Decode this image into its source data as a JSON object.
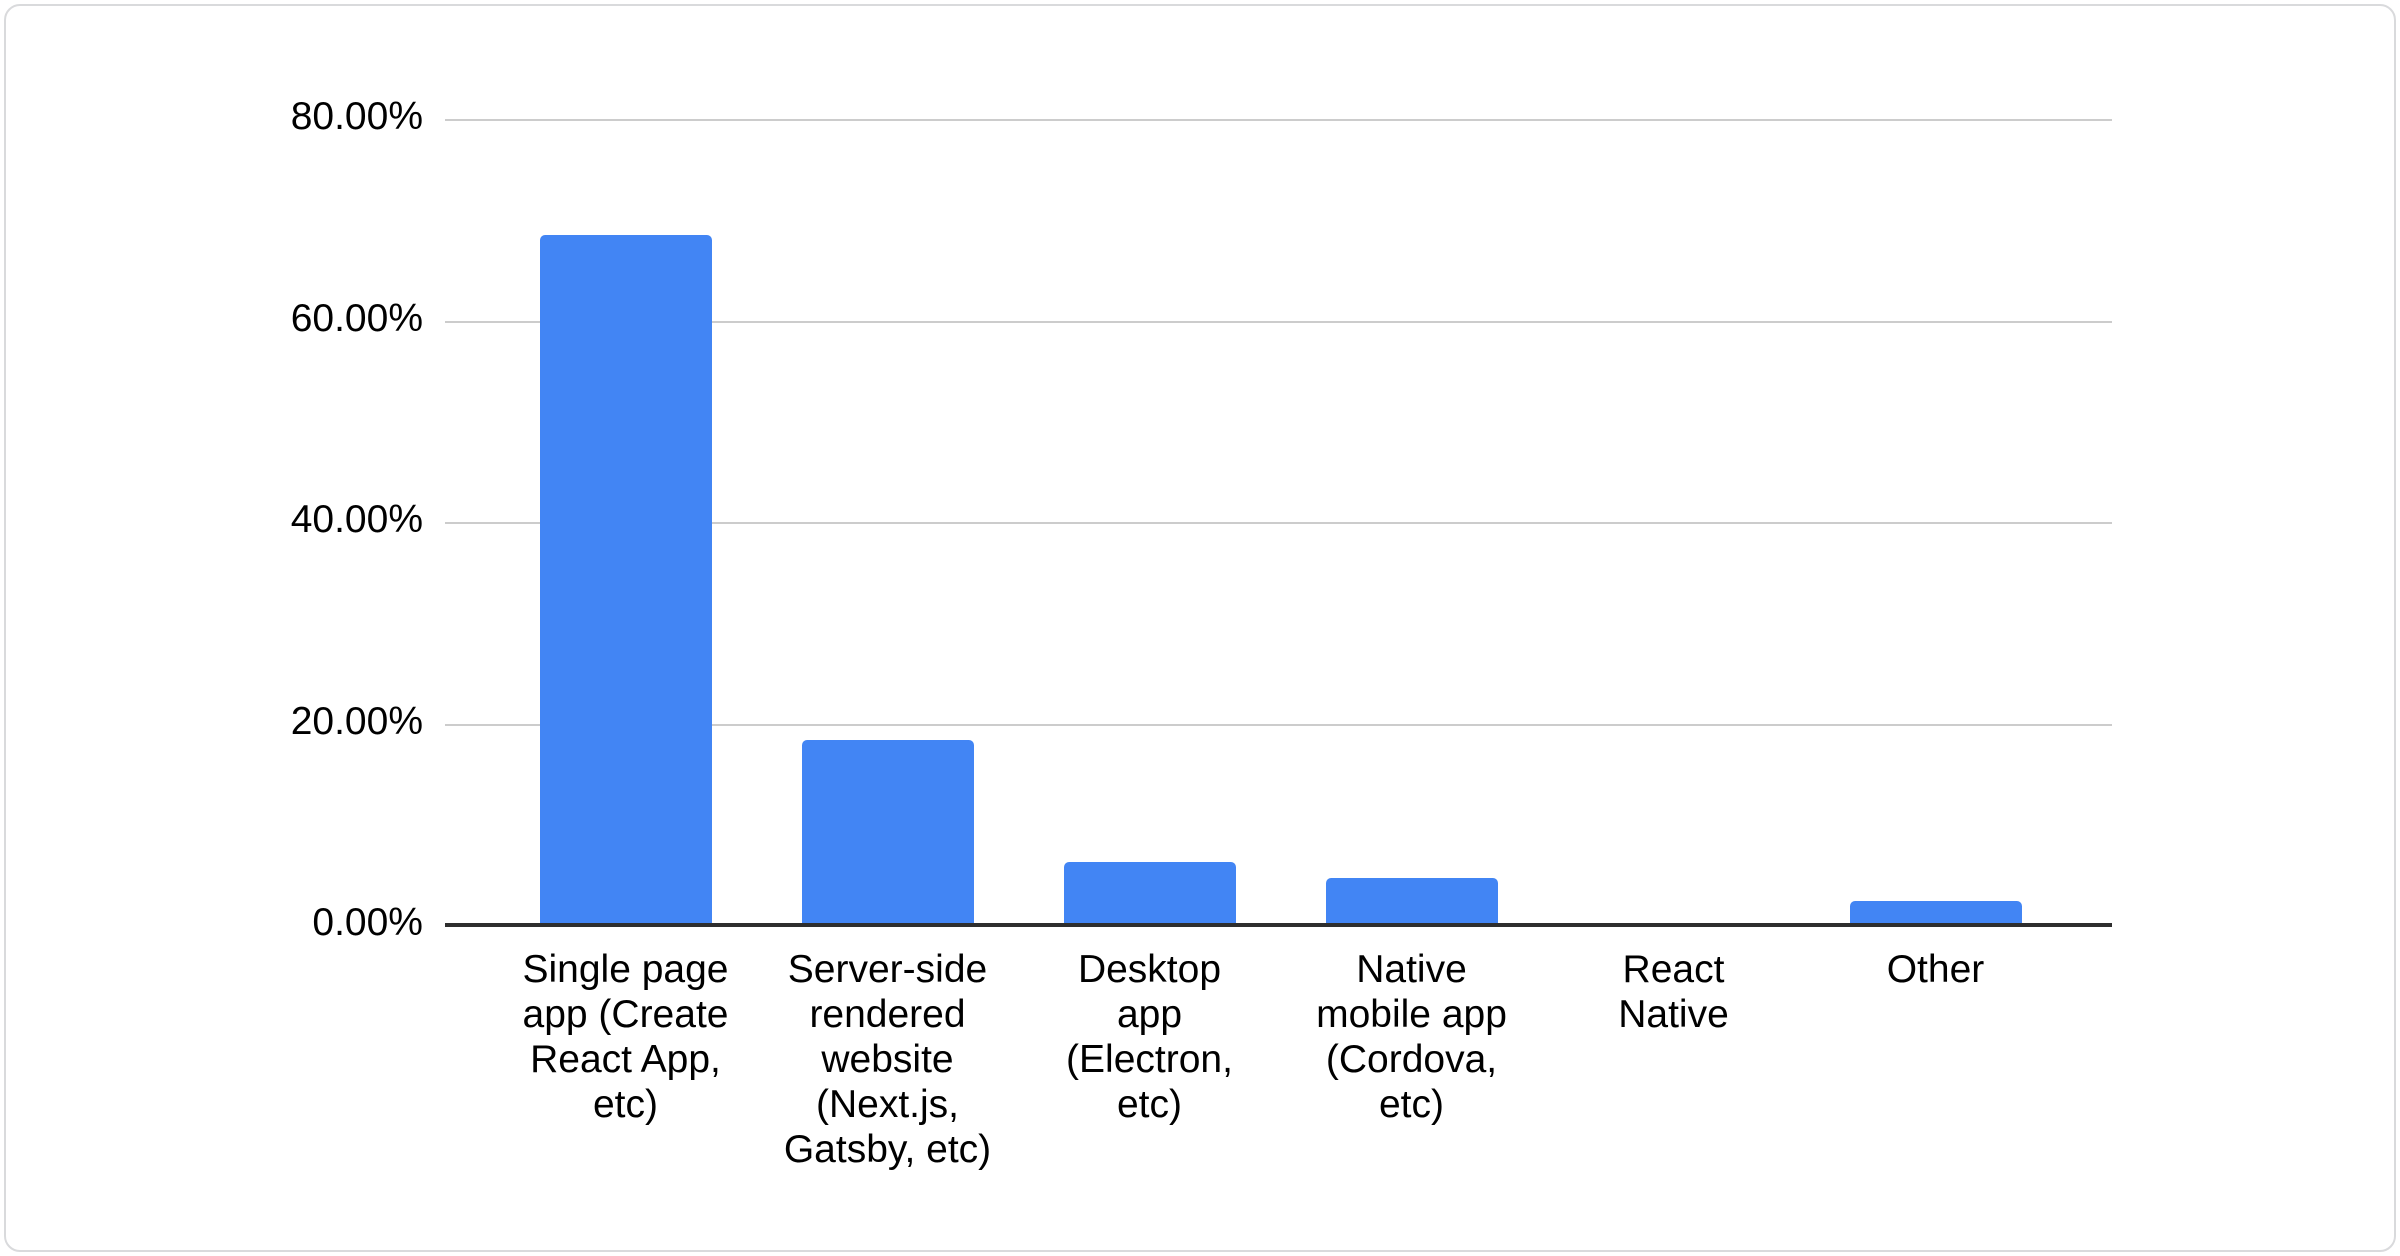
{
  "chart_data": {
    "type": "bar",
    "title": "",
    "categories": [
      "Single page app (Create React App, etc)",
      "Server-side rendered website (Next.js, Gatsby, etc)",
      "Desktop app (Electron, etc)",
      "Native mobile app (Cordova, etc)",
      "React Native",
      "Other"
    ],
    "categories_wrapped": [
      "Single page\napp (Create\nReact App,\netc)",
      "Server-side\nrendered\nwebsite\n(Next.js,\nGatsby, etc)",
      "Desktop\napp\n(Electron,\netc)",
      "Native\nmobile app\n(Cordova,\netc)",
      "React\nNative",
      "Other"
    ],
    "values": [
      68.5,
      18.4,
      6.3,
      4.7,
      0,
      2.4
    ],
    "unit": "%",
    "y_ticks": [
      "80.00%",
      "60.00%",
      "40.00%",
      "20.00%",
      "0.00%"
    ],
    "ylim": [
      0,
      80
    ],
    "grid": true,
    "legend": "none",
    "bar_color": "#4285f4",
    "gridline_color": "#cccccc",
    "axis_line_color": "#2e2e2e",
    "text_color": "#000000"
  }
}
